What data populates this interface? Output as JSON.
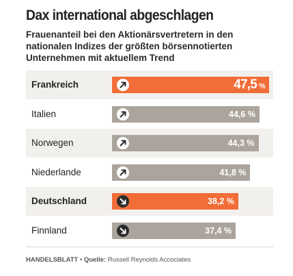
{
  "title": "Dax international abgeschlagen",
  "subtitle": "Frauenanteil bei den Aktionärsvertretern in den nationalen Indizes der größten börsennotierten Unternehmen mit aktuellem Trend",
  "source": {
    "publisher": "HANDELSBLATT",
    "separator": "•",
    "label": "Quelle:",
    "name": "Russell Reynolds Accociates"
  },
  "chart_data": {
    "type": "bar",
    "orientation": "horizontal",
    "title": "Dax international abgeschlagen",
    "subtitle": "Frauenanteil bei den Aktionärsvertretern in den nationalen Indizes der größten börsennotierten Unternehmen mit aktuellem Trend",
    "unit": "%",
    "xlim": [
      0,
      47.5
    ],
    "categories": [
      "Frankreich",
      "Italien",
      "Norwegen",
      "Niederlande",
      "Deutschland",
      "Finnland"
    ],
    "values": [
      47.5,
      44.6,
      44.3,
      41.8,
      38.2,
      37.4
    ],
    "value_labels": [
      "47,5",
      "44,6 %",
      "44,3 %",
      "41,8 %",
      "38,2 %",
      "37,4 %"
    ],
    "unit_label": "%",
    "trend": [
      "up",
      "up",
      "up",
      "up",
      "down",
      "down"
    ],
    "highlighted": [
      true,
      false,
      false,
      false,
      true,
      false
    ],
    "colors": {
      "highlight": "#f26d37",
      "default": "#aba49c",
      "row_shade": "#f2f0ed",
      "icon_up": "#ffffff",
      "icon_down": "#2b2b2b"
    }
  }
}
